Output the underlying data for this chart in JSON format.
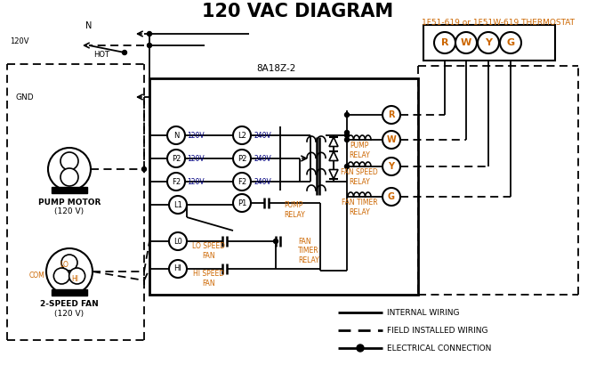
{
  "title": "120 VAC DIAGRAM",
  "bg_color": "#ffffff",
  "line_color": "#000000",
  "orange_color": "#cc6600",
  "thermostat_label": "1F51-619 or 1F51W-619 THERMOSTAT",
  "controller_label": "8A18Z-2",
  "legend": [
    {
      "label": "INTERNAL WIRING",
      "style": "solid"
    },
    {
      "label": "FIELD INSTALLED WIRING",
      "style": "dashed"
    },
    {
      "label": "ELECTRICAL CONNECTION",
      "style": "dot"
    }
  ],
  "terminal_labels": [
    "R",
    "W",
    "Y",
    "G"
  ]
}
